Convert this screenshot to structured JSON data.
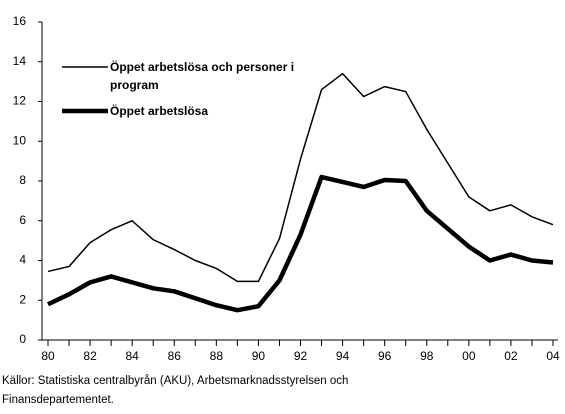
{
  "chart_data": {
    "type": "line",
    "categories": [
      "80",
      null,
      "82",
      null,
      "84",
      null,
      "86",
      null,
      "88",
      null,
      "90",
      null,
      "92",
      null,
      "94",
      null,
      "96",
      null,
      "98",
      null,
      "00",
      null,
      "02",
      null,
      "04"
    ],
    "series": [
      {
        "name": "Öppet arbetslösa och personer i program",
        "color": "#000000",
        "line_width": 1.5,
        "values": [
          3.45,
          3.7,
          4.9,
          5.55,
          6.0,
          5.05,
          4.55,
          4.0,
          3.6,
          2.95,
          2.95,
          5.1,
          9.1,
          12.6,
          13.4,
          12.25,
          12.75,
          12.5,
          10.6,
          8.9,
          7.2,
          6.5,
          6.8,
          6.2,
          5.8
        ]
      },
      {
        "name": "Öppet arbetslösa",
        "color": "#000000",
        "line_width": 4.5,
        "values": [
          1.8,
          2.3,
          2.9,
          3.2,
          2.9,
          2.6,
          2.45,
          2.1,
          1.75,
          1.5,
          1.7,
          3.0,
          5.3,
          8.2,
          7.95,
          7.7,
          8.05,
          8.0,
          6.5,
          5.6,
          4.7,
          4.0,
          4.3,
          4.0,
          3.9
        ]
      }
    ],
    "ylim": [
      0,
      16
    ],
    "yticks": [
      0,
      2,
      4,
      6,
      8,
      10,
      12,
      14,
      16
    ],
    "grid": false,
    "legend": "upper left",
    "source": "Källor: Statistiska centralbyrån (AKU), Arbetsmarknadsstyrelsen och Finansdepartementet."
  }
}
